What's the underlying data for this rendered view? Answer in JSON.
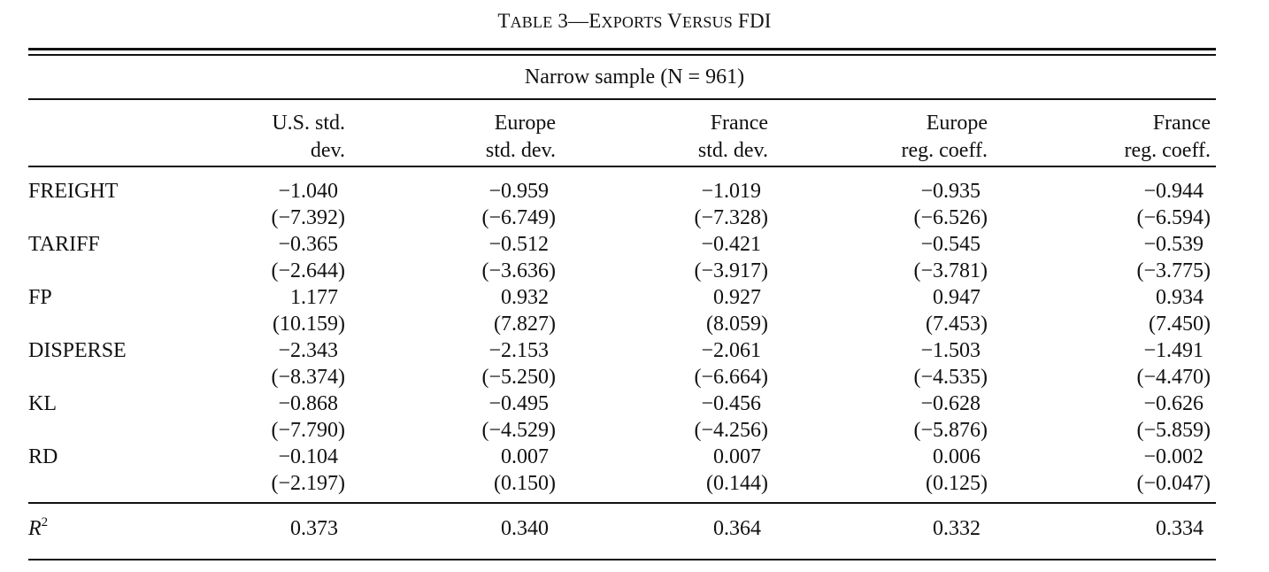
{
  "table": {
    "title_prefix": "T",
    "title_word1_rest": "ABLE",
    "title_num": " 3—",
    "title_word2_first": "E",
    "title_word2_rest": "XPORTS",
    "title_word3_first": " V",
    "title_word3_rest": "ERSUS",
    "title_word4": " FDI",
    "sample_label": "Narrow sample (N = 961)",
    "columns": [
      {
        "line1": "U.S. std.",
        "line2": "dev."
      },
      {
        "line1": "Europe",
        "line2": "std. dev."
      },
      {
        "line1": "France",
        "line2": "std. dev."
      },
      {
        "line1": "Europe",
        "line2": "reg. coeff."
      },
      {
        "line1": "France",
        "line2": "reg. coeff."
      }
    ],
    "rows": [
      {
        "label": "FREIGHT",
        "coef": [
          "−1.040",
          "−0.959",
          "−1.019",
          "−0.935",
          "−0.944"
        ],
        "tstat": [
          "(−7.392)",
          "(−6.749)",
          "(−7.328)",
          "(−6.526)",
          "(−6.594)"
        ]
      },
      {
        "label": "TARIFF",
        "coef": [
          "−0.365",
          "−0.512",
          "−0.421",
          "−0.545",
          "−0.539"
        ],
        "tstat": [
          "(−2.644)",
          "(−3.636)",
          "(−3.917)",
          "(−3.781)",
          "(−3.775)"
        ]
      },
      {
        "label": "FP",
        "coef": [
          "1.177",
          "0.932",
          "0.927",
          "0.947",
          "0.934"
        ],
        "tstat": [
          "(10.159)",
          "(7.827)",
          "(8.059)",
          "(7.453)",
          "(7.450)"
        ]
      },
      {
        "label": "DISPERSE",
        "coef": [
          "−2.343",
          "−2.153",
          "−2.061",
          "−1.503",
          "−1.491"
        ],
        "tstat": [
          "(−8.374)",
          "(−5.250)",
          "(−6.664)",
          "(−4.535)",
          "(−4.470)"
        ]
      },
      {
        "label": "KL",
        "coef": [
          "−0.868",
          "−0.495",
          "−0.456",
          "−0.628",
          "−0.626"
        ],
        "tstat": [
          "(−7.790)",
          "(−4.529)",
          "(−4.256)",
          "(−5.876)",
          "(−5.859)"
        ]
      },
      {
        "label": "RD",
        "coef": [
          "−0.104",
          "0.007",
          "0.007",
          "0.006",
          "−0.002"
        ],
        "tstat": [
          "(−2.197)",
          "(0.150)",
          "(0.144)",
          "(0.125)",
          "(−0.047)"
        ]
      }
    ],
    "r2_label": "R",
    "r2_sup": "2",
    "r2_values": [
      "0.373",
      "0.340",
      "0.364",
      "0.332",
      "0.334"
    ]
  }
}
